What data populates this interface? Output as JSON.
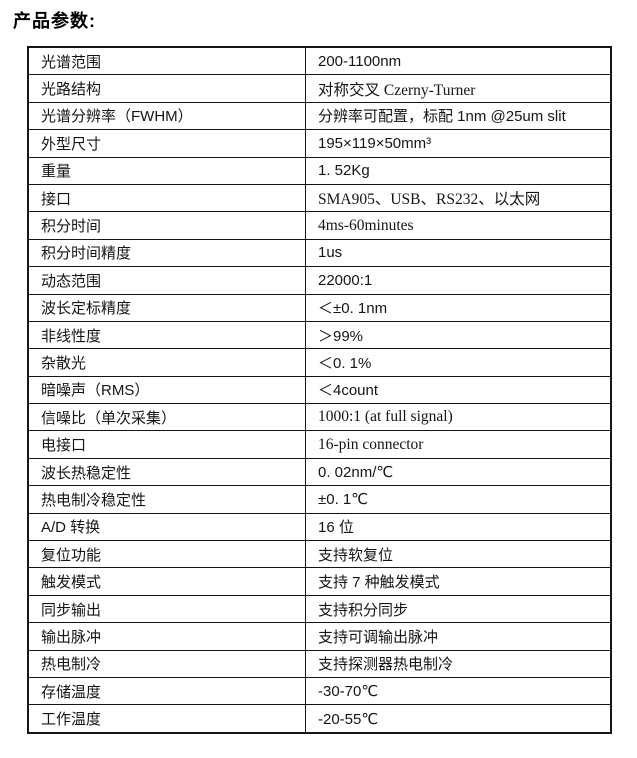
{
  "page_title": "产品参数:",
  "table": {
    "rows": [
      {
        "label": "光谱范围",
        "value": "200-1100nm"
      },
      {
        "label": "光路结构",
        "value": "对称交叉 Czerny-Turner"
      },
      {
        "label": "光谱分辨率（FWHM）",
        "value": "分辨率可配置，标配 1nm @25um slit"
      },
      {
        "label": "外型尺寸",
        "value": "195×119×50mm³"
      },
      {
        "label": "重量",
        "value": "1. 52Kg"
      },
      {
        "label": "接口",
        "value": "SMA905、USB、RS232、以太网"
      },
      {
        "label": "积分时间",
        "value": "4ms-60minutes"
      },
      {
        "label": "积分时间精度",
        "value": "1us"
      },
      {
        "label": "动态范围",
        "value": "22000:1"
      },
      {
        "label": "波长定标精度",
        "value": "＜±0. 1nm"
      },
      {
        "label": "非线性度",
        "value": "＞99%"
      },
      {
        "label": "杂散光",
        "value": "＜0. 1%"
      },
      {
        "label": "暗噪声（RMS）",
        "value": "＜4count"
      },
      {
        "label": "信噪比（单次采集）",
        "value": "1000:1 (at full signal)"
      },
      {
        "label": "电接口",
        "value": "16-pin connector"
      },
      {
        "label": "波长热稳定性",
        "value": "0. 02nm/℃"
      },
      {
        "label": "热电制冷稳定性",
        "value": "±0. 1℃"
      },
      {
        "label": "A/D 转换",
        "value": "16 位"
      },
      {
        "label": "复位功能",
        "value": "支持软复位"
      },
      {
        "label": "触发模式",
        "value": "支持 7 种触发模式"
      },
      {
        "label": "同步输出",
        "value": "支持积分同步"
      },
      {
        "label": "输出脉冲",
        "value": "支持可调输出脉冲"
      },
      {
        "label": "热电制冷",
        "value": "支持探测器热电制冷"
      },
      {
        "label": "存储温度",
        "value": "-30-70℃"
      },
      {
        "label": "工作温度",
        "value": "-20-55℃"
      }
    ]
  }
}
